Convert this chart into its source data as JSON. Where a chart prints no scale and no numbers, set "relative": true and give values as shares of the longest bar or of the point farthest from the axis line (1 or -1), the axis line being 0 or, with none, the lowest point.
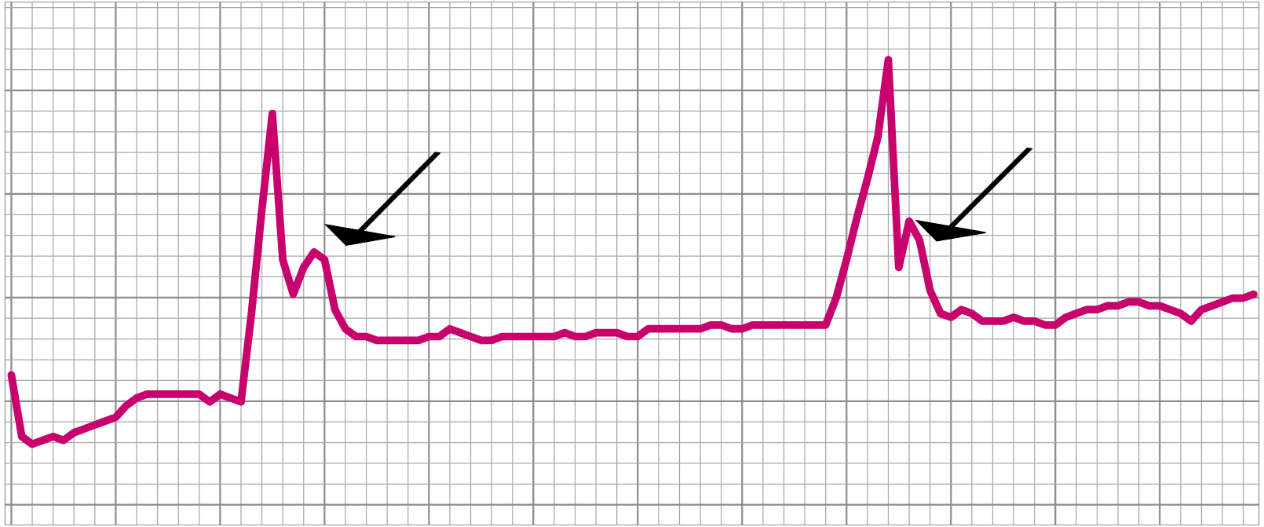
{
  "chart_data": {
    "type": "line",
    "relative": true,
    "grid": true,
    "marker": "none",
    "line_style": "solid",
    "categories": [
      null,
      null,
      null,
      null,
      null,
      null,
      null,
      null,
      null,
      null,
      null,
      null,
      null,
      null,
      null,
      null,
      null,
      null,
      null,
      null,
      null,
      null,
      null,
      null,
      null,
      null,
      null,
      null,
      null,
      null,
      null,
      null,
      null,
      null,
      null,
      null,
      null,
      null,
      null,
      null,
      null,
      null,
      null,
      null,
      null,
      null,
      null,
      null,
      null,
      null,
      null,
      null,
      null,
      null,
      null,
      null,
      null,
      null,
      null,
      null,
      null,
      null,
      null,
      null,
      null,
      null,
      null,
      null,
      null,
      null,
      null,
      null,
      null,
      null,
      null,
      null,
      null,
      null,
      null,
      null,
      null,
      null,
      null,
      null,
      null,
      null,
      null,
      null,
      null,
      null,
      null,
      null,
      null,
      null,
      null,
      null,
      null,
      null,
      null,
      null,
      null,
      null,
      null,
      null,
      null,
      null,
      null,
      null,
      null,
      null,
      null,
      null,
      null,
      null,
      null,
      null,
      null,
      null,
      null,
      null
    ],
    "series": [
      {
        "color": "#c8006e",
        "values": [
          0.18,
          0.02,
          0,
          0.01,
          0.02,
          0.01,
          0.03,
          0.04,
          0.05,
          0.06,
          0.07,
          0.1,
          0.12,
          0.13,
          0.13,
          0.13,
          0.13,
          0.13,
          0.13,
          0.11,
          0.13,
          0.12,
          0.11,
          0.34,
          0.61,
          0.86,
          0.48,
          0.39,
          0.46,
          0.5,
          0.48,
          0.35,
          0.3,
          0.28,
          0.28,
          0.27,
          0.27,
          0.27,
          0.27,
          0.27,
          0.28,
          0.28,
          0.3,
          0.29,
          0.28,
          0.27,
          0.27,
          0.28,
          0.28,
          0.28,
          0.28,
          0.28,
          0.28,
          0.29,
          0.28,
          0.28,
          0.29,
          0.29,
          0.29,
          0.28,
          0.28,
          0.3,
          0.3,
          0.3,
          0.3,
          0.3,
          0.3,
          0.31,
          0.31,
          0.3,
          0.3,
          0.31,
          0.31,
          0.31,
          0.31,
          0.31,
          0.31,
          0.31,
          0.31,
          0.38,
          0.48,
          0.59,
          0.69,
          0.8,
          1.0,
          0.46,
          0.58,
          0.53,
          0.4,
          0.34,
          0.33,
          0.35,
          0.34,
          0.32,
          0.32,
          0.32,
          0.33,
          0.32,
          0.32,
          0.31,
          0.31,
          0.33,
          0.34,
          0.35,
          0.35,
          0.36,
          0.36,
          0.37,
          0.37,
          0.36,
          0.36,
          0.35,
          0.34,
          0.32,
          0.35,
          0.36,
          0.37,
          0.38,
          0.38,
          0.39
        ]
      }
    ]
  }
}
